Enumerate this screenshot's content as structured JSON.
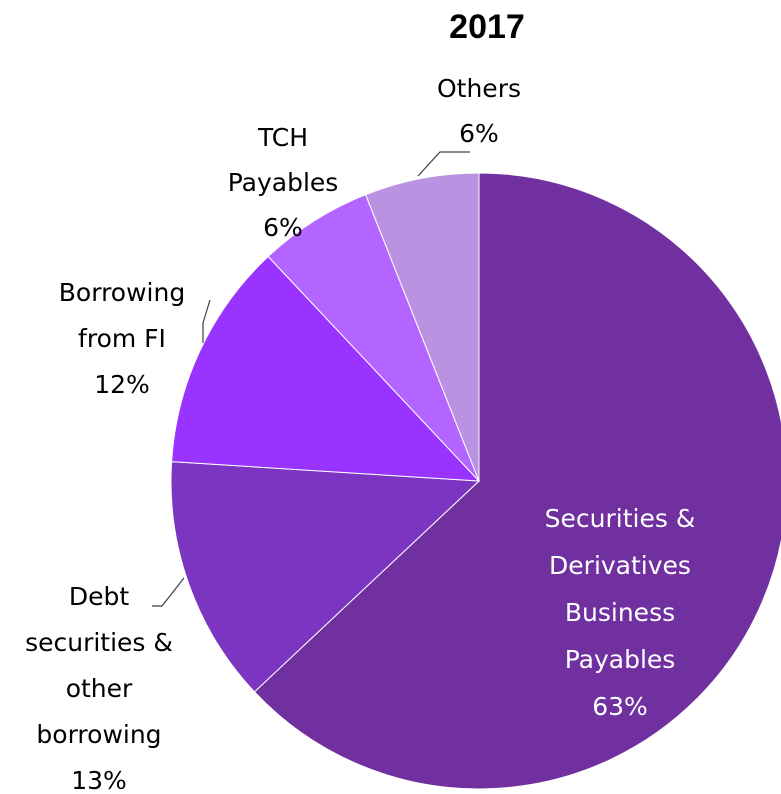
{
  "chart_data": {
    "type": "pie",
    "title": "2017",
    "slices": [
      {
        "label": [
          "Securities &",
          "Derivatives",
          "Business",
          "Payables"
        ],
        "value": 63,
        "value_label": "63%",
        "color": "#7030a0",
        "label_color": "#ffffff"
      },
      {
        "label": [
          "Debt",
          "securities &",
          "other",
          "borrowing"
        ],
        "value": 13,
        "value_label": "13%",
        "color": "#7b35c0",
        "label_color": "#000000"
      },
      {
        "label": [
          "Borrowing",
          "from FI"
        ],
        "value": 12,
        "value_label": "12%",
        "color": "#9933ff",
        "label_color": "#000000"
      },
      {
        "label": [
          "TCH",
          "Payables"
        ],
        "value": 6,
        "value_label": "6%",
        "color": "#b366ff",
        "label_color": "#000000"
      },
      {
        "label": [
          "Others"
        ],
        "value": 6,
        "value_label": "6%",
        "color": "#b993e1",
        "label_color": "#000000"
      }
    ],
    "start_angle_deg": 0,
    "direction": "clockwise",
    "legend": "none"
  }
}
